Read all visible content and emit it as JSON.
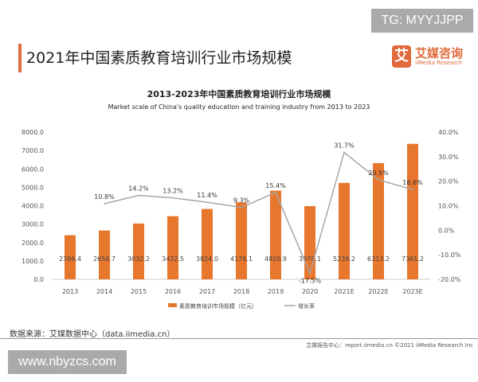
{
  "watermark_top": "TG: MYYJJPP",
  "watermark_bottom": "www.nbyzcs.com",
  "page_title": "2021年中国素质教育培训行业市场规模",
  "logo": {
    "mark": "艾",
    "cn": "艾媒咨询",
    "en": "iiMedia Research"
  },
  "source": "数据来源：艾媒数据中心（data.iimedia.cn）",
  "footer": "艾媒报告中心：report.iimedia.cn   ©2021  iiMedia Research  Inc",
  "colors": {
    "bar": "#e8772e",
    "line": "#a6a6a6",
    "accent": "#e06a3b"
  },
  "chart_data": {
    "type": "bar+line",
    "title": "2013-2023年中国素质教育培训行业市场规模",
    "subtitle": "Market scale of China's quality education and training industry from 2013 to 2023",
    "categories": [
      "2013",
      "2014",
      "2015",
      "2016",
      "2017",
      "2018",
      "2019",
      "2020",
      "2021E",
      "2022E",
      "2023E"
    ],
    "series": [
      {
        "name": "素质教育培训市场规模（亿元）",
        "type": "bar",
        "axis": "left",
        "values": [
          2396.4,
          2654.7,
          3032.2,
          3432.5,
          3824.0,
          4178.1,
          4820.9,
          3978.1,
          5239.2,
          6313.2,
          7361.2
        ],
        "labels": [
          "2396.4",
          "2654.7",
          "3032.2",
          "3432.5",
          "3824.0",
          "4178.1",
          "4820.9",
          "3978.1",
          "5239.2",
          "6313.2",
          "7361.2"
        ]
      },
      {
        "name": "增长率",
        "type": "line",
        "axis": "right",
        "values": [
          null,
          10.8,
          14.2,
          13.2,
          11.4,
          9.3,
          15.4,
          -17.5,
          31.7,
          20.5,
          16.6
        ],
        "labels": [
          "",
          "10.8%",
          "14.2%",
          "13.2%",
          "11.4%",
          "9.3%",
          "15.4%",
          "-17.5%",
          "31.7%",
          "20.5%",
          "16.6%"
        ]
      }
    ],
    "left_axis": {
      "range": [
        0,
        8000
      ],
      "ticks": [
        "0.0",
        "1000.0",
        "2000.0",
        "3000.0",
        "4000.0",
        "5000.0",
        "6000.0",
        "7000.0",
        "8000.0"
      ]
    },
    "right_axis": {
      "range": [
        -20,
        40
      ],
      "ticks": [
        "-20.0%",
        "-10.0%",
        "0.0%",
        "10.0%",
        "20.0%",
        "30.0%",
        "40.0%"
      ]
    },
    "grid": false,
    "legend": "bottom"
  }
}
